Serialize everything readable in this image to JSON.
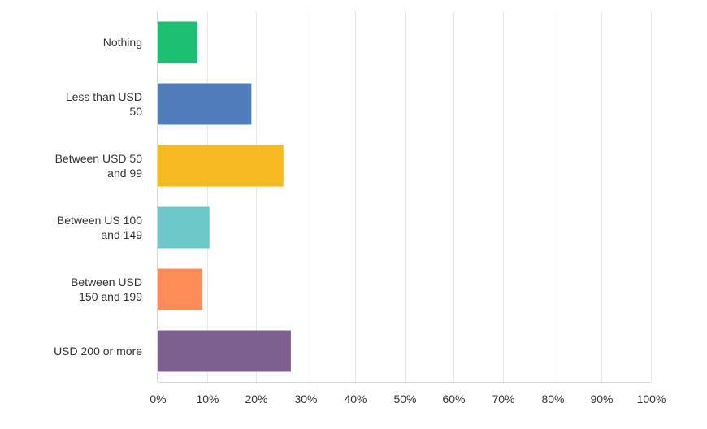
{
  "chart_data": {
    "type": "bar",
    "orientation": "horizontal",
    "categories": [
      [
        "Nothing"
      ],
      [
        "Less than USD",
        "50"
      ],
      [
        "Between USD 50",
        "and 99"
      ],
      [
        "Between US 100",
        "and 149"
      ],
      [
        "Between USD",
        "150 and 199"
      ],
      [
        "USD 200 or more"
      ]
    ],
    "values": [
      8,
      19,
      25.5,
      10.5,
      9,
      27
    ],
    "colors": [
      "#1dbf73",
      "#4f7cba",
      "#f6bb23",
      "#6cc8c9",
      "#fe8c56",
      "#7d5f90"
    ],
    "xlim": [
      0,
      100
    ],
    "ticks": [
      "0%",
      "10%",
      "20%",
      "30%",
      "40%",
      "50%",
      "60%",
      "70%",
      "80%",
      "90%",
      "100%"
    ],
    "grid": true,
    "legend": "none"
  }
}
